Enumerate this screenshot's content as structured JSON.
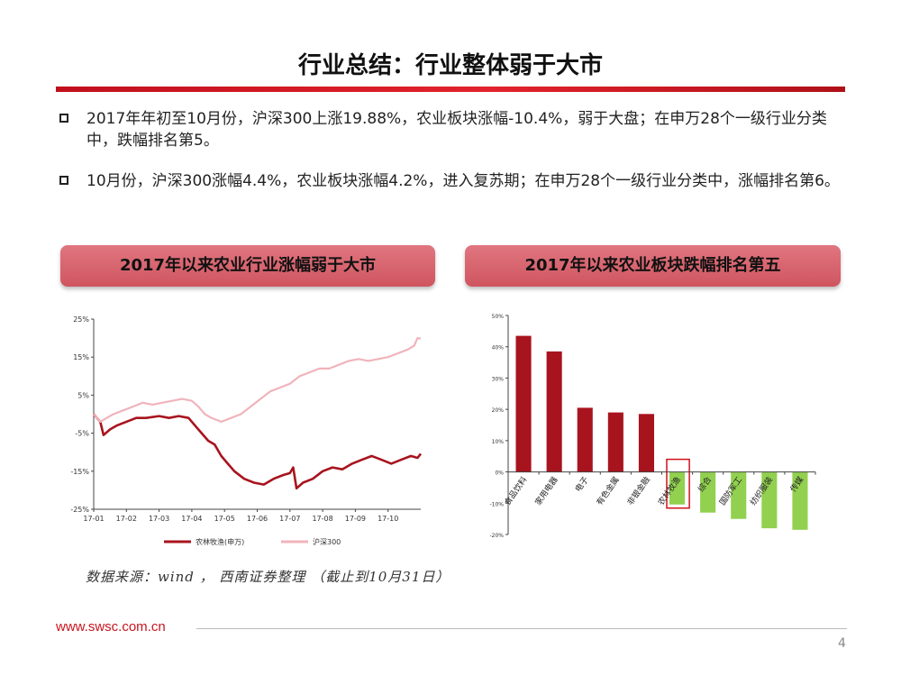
{
  "slide": {
    "title": "行业总结：行业整体弱于大市",
    "bullets": [
      "2017年年初至10月份，沪深300上涨19.88%，农业板块涨幅-10.4%，弱于大盘；在申万28个一级行业分类中，跌幅排名第5。",
      "10月份，沪深300涨幅4.4%，农业板块涨幅4.2%，进入复苏期；在申万28个一级行业分类中，涨幅排名第6。"
    ],
    "pill_left": "2017年以来农业行业涨幅弱于大市",
    "pill_right": "2017年以来农业板块跌幅排名第五",
    "source": "数据来源：wind ， 西南证券整理 （截止到10月31日）",
    "url": "www.swsc.com.cn",
    "page_number": "4"
  },
  "chart_data": [
    {
      "type": "line",
      "title": "",
      "xlabel": "",
      "ylabel": "",
      "ylim": [
        -25,
        25
      ],
      "y_ticks": [
        -25,
        -15,
        -5,
        5,
        15,
        25
      ],
      "y_tick_labels": [
        "-25%",
        "-15%",
        "-5%",
        "5%",
        "15%",
        "25%"
      ],
      "x_ticks": [
        1,
        2,
        3,
        4,
        5,
        6,
        7,
        8,
        9,
        10
      ],
      "x_tick_labels": [
        "17-01",
        "17-02",
        "17-03",
        "17-04",
        "17-05",
        "17-06",
        "17-07",
        "17-08",
        "17-09",
        "17-10"
      ],
      "xlim": [
        1,
        11
      ],
      "legend_position": "bottom",
      "series": [
        {
          "name": "农林牧渔(申万)",
          "color": "#a8141e",
          "x": [
            1.0,
            1.1,
            1.2,
            1.3,
            1.5,
            1.7,
            2.0,
            2.3,
            2.6,
            3.0,
            3.3,
            3.6,
            3.9,
            4.1,
            4.3,
            4.5,
            4.7,
            4.9,
            5.1,
            5.3,
            5.6,
            5.9,
            6.2,
            6.5,
            6.8,
            7.0,
            7.1,
            7.2,
            7.4,
            7.7,
            8.0,
            8.3,
            8.6,
            8.9,
            9.2,
            9.5,
            9.8,
            10.1,
            10.4,
            10.7,
            10.9,
            11.0
          ],
          "y": [
            0,
            -1,
            -2,
            -5.5,
            -4,
            -3,
            -2,
            -1,
            -1,
            -0.5,
            -1,
            -0.5,
            -1,
            -3,
            -5,
            -7,
            -8,
            -11,
            -13,
            -15,
            -17,
            -18,
            -18.5,
            -17,
            -16,
            -15.5,
            -14,
            -19.5,
            -18,
            -17,
            -15,
            -14,
            -14.5,
            -13,
            -12,
            -11,
            -12,
            -13,
            -12,
            -11,
            -11.5,
            -10.4
          ]
        },
        {
          "name": "沪深300",
          "color": "#f0b4bb",
          "x": [
            1.0,
            1.2,
            1.4,
            1.6,
            1.9,
            2.2,
            2.5,
            2.8,
            3.1,
            3.4,
            3.7,
            4.0,
            4.2,
            4.4,
            4.6,
            4.9,
            5.2,
            5.5,
            5.8,
            6.1,
            6.4,
            6.7,
            7.0,
            7.3,
            7.6,
            7.9,
            8.2,
            8.5,
            8.8,
            9.1,
            9.4,
            9.7,
            10.0,
            10.3,
            10.6,
            10.8,
            10.9,
            11.0
          ],
          "y": [
            0,
            -2,
            -1,
            0,
            1,
            2,
            3,
            2.5,
            3,
            3.5,
            4,
            3.5,
            2,
            0,
            -1,
            -2,
            -1,
            0,
            2,
            4,
            6,
            7,
            8,
            10,
            11,
            12,
            12,
            13,
            14,
            14.5,
            14,
            14.5,
            15,
            16,
            17,
            18,
            20,
            19.88
          ]
        }
      ]
    },
    {
      "type": "bar",
      "title": "",
      "xlabel": "",
      "ylabel": "",
      "ylim": [
        -20,
        50
      ],
      "y_ticks": [
        -20,
        -10,
        0,
        10,
        20,
        30,
        40,
        50
      ],
      "y_tick_labels": [
        "-20%",
        "-10%",
        "0%",
        "10%",
        "20%",
        "30%",
        "40%",
        "50%"
      ],
      "categories": [
        "食品饮料",
        "家用电器",
        "电子",
        "有色金属",
        "非银金融",
        "农林牧渔",
        "综合",
        "国防军工",
        "纺织服装",
        "传媒"
      ],
      "values": [
        43.5,
        38.5,
        20.5,
        19,
        18.5,
        -10.4,
        -13,
        -15,
        -18,
        -18.5
      ],
      "colors": {
        "positive": "#a8141e",
        "negative": "#92d050",
        "highlight_border": "#d0101a"
      },
      "highlight_category": "农林牧渔"
    }
  ]
}
